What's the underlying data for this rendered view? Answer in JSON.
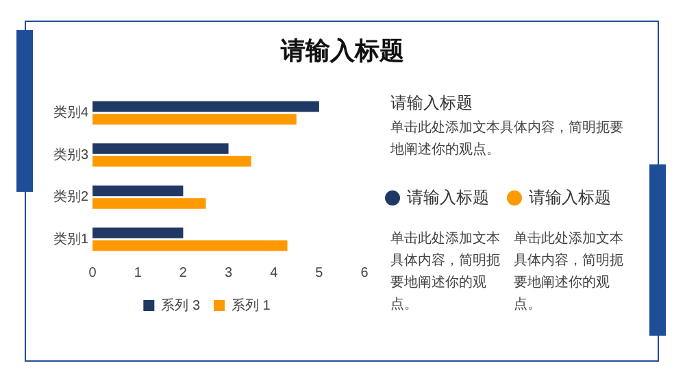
{
  "chart_data": {
    "type": "bar",
    "orientation": "horizontal",
    "title": "请输入标题",
    "categories": [
      "类别4",
      "类别3",
      "类别2",
      "类别1"
    ],
    "series": [
      {
        "name": "系列 3",
        "color": "#203864",
        "values": [
          5,
          3,
          2,
          2
        ]
      },
      {
        "name": "系列 1",
        "color": "#ff9900",
        "values": [
          4.5,
          3.5,
          2.5,
          4.3
        ]
      }
    ],
    "xlim": [
      0,
      6
    ],
    "xticks": [
      0,
      1,
      2,
      3,
      4,
      5,
      6
    ],
    "grid": false,
    "legend": "bottom",
    "annotations": [
      "请输入标题",
      "单击此处添加文本具体内容，简明扼要地阐述你的观点。",
      "请输入标题",
      "请输入标题",
      "单击此处添加文本具体内容，简明扼要地阐述你的观点。",
      "单击此处添加文本具体内容，简明扼要地阐述你的观点。"
    ]
  }
}
